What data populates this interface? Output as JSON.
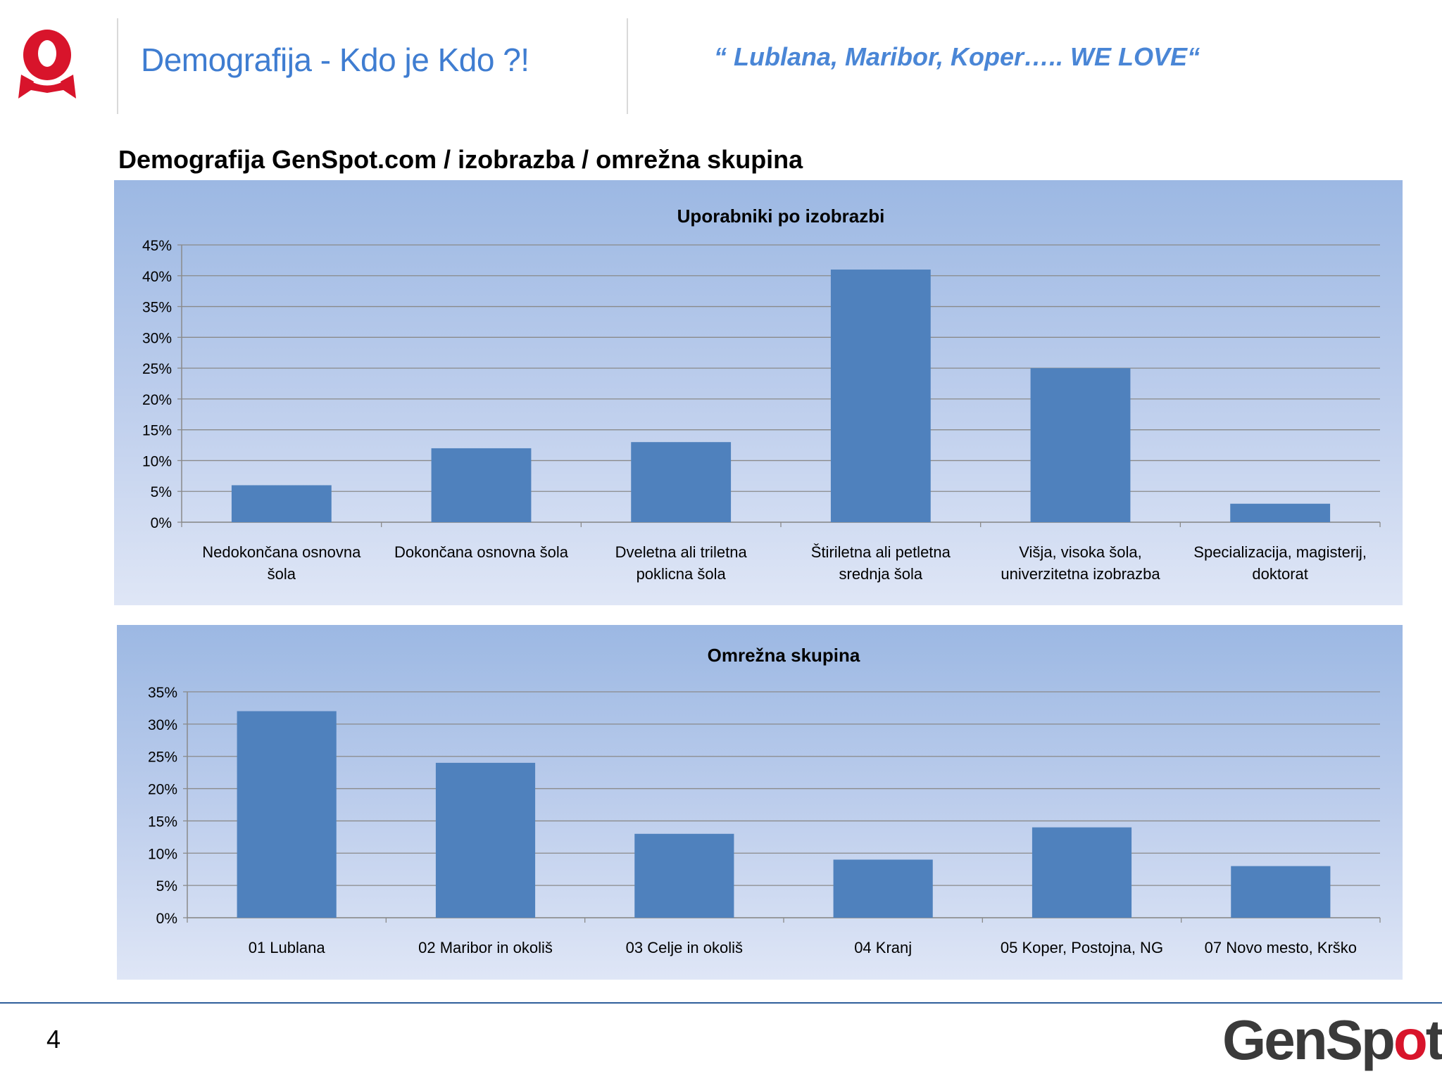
{
  "header": {
    "title": "Demografija - Kdo je Kdo ?!",
    "slogan": "“ Lublana, Maribor, Koper….. WE LOVE“",
    "logo": "ribbon-o-logo"
  },
  "subtitle": "Demografija GenSpot.com / izobrazba  / omrežna skupina",
  "footer": {
    "page_number": "4",
    "brand": {
      "part1": "GenSp",
      "part2": "o",
      "part3": "t"
    }
  },
  "colors": {
    "bar": "#4f81bd",
    "title": "#3f7dd1",
    "brand_red": "#d8142b"
  },
  "chart_data": [
    {
      "type": "bar",
      "title": "Uporabniki po izobrazbi",
      "categories": [
        [
          "Nedokončana osnovna",
          "šola"
        ],
        [
          "Dokončana osnovna šola"
        ],
        [
          "Dveletna ali triletna",
          "poklicna šola"
        ],
        [
          "Štiriletna ali petletna",
          "srednja šola"
        ],
        [
          "Višja, visoka šola,",
          "univerzitetna izobrazba"
        ],
        [
          "Specializacija, magisterij,",
          "doktorat"
        ]
      ],
      "values": [
        6,
        12,
        13,
        41,
        25,
        3
      ],
      "yticks": [
        "0%",
        "5%",
        "10%",
        "15%",
        "20%",
        "25%",
        "30%",
        "35%",
        "40%",
        "45%"
      ],
      "ylim": [
        0,
        45
      ],
      "ystep": 5,
      "xlabel": "",
      "ylabel": "",
      "grid": true,
      "legend": "none"
    },
    {
      "type": "bar",
      "title": "Omrežna skupina",
      "categories": [
        [
          "01 Lublana"
        ],
        [
          "02 Maribor in okoliš"
        ],
        [
          "03 Celje in okoliš"
        ],
        [
          "04 Kranj"
        ],
        [
          "05 Koper, Postojna, NG"
        ],
        [
          "07 Novo mesto, Krško"
        ]
      ],
      "values": [
        32,
        24,
        13,
        9,
        14,
        8
      ],
      "yticks": [
        "0%",
        "5%",
        "10%",
        "15%",
        "20%",
        "25%",
        "30%",
        "35%"
      ],
      "ylim": [
        0,
        35
      ],
      "ystep": 5,
      "xlabel": "",
      "ylabel": "",
      "grid": true,
      "legend": "none"
    }
  ]
}
